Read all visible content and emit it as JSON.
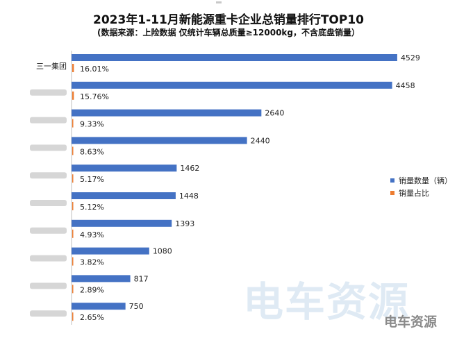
{
  "chart_data": {
    "type": "bar",
    "title": "2023年1-11月新能源重卡企业总销量排行TOP10",
    "subtitle": "(数据来源：上险数据 仅统计车辆总质量≥12000kg，不含底盘销量）",
    "categories": [
      "三一集团",
      "",
      "",
      "",
      "",
      "",
      "",
      "",
      "",
      ""
    ],
    "series": [
      {
        "name": "销量数量（辆）",
        "color": "#4472c4",
        "values": [
          4529,
          4458,
          2640,
          2440,
          1462,
          1448,
          1393,
          1080,
          817,
          750
        ]
      },
      {
        "name": "销量占比",
        "color": "#ed7d31",
        "values": [
          16.01,
          15.76,
          9.33,
          8.63,
          5.17,
          5.12,
          4.93,
          3.82,
          2.89,
          2.65
        ]
      }
    ],
    "value_labels": [
      "4529",
      "4458",
      "2640",
      "2440",
      "1462",
      "1448",
      "1393",
      "1080",
      "817",
      "750"
    ],
    "share_labels": [
      "16.01%",
      "15.76%",
      "9.33%",
      "8.63%",
      "5.17%",
      "5.12%",
      "4.93%",
      "3.82%",
      "2.89%",
      "2.65%"
    ],
    "xlim": [
      0,
      4800
    ],
    "legend_position": "right"
  },
  "watermark": "电车资源",
  "watermark_small": "电车资源"
}
